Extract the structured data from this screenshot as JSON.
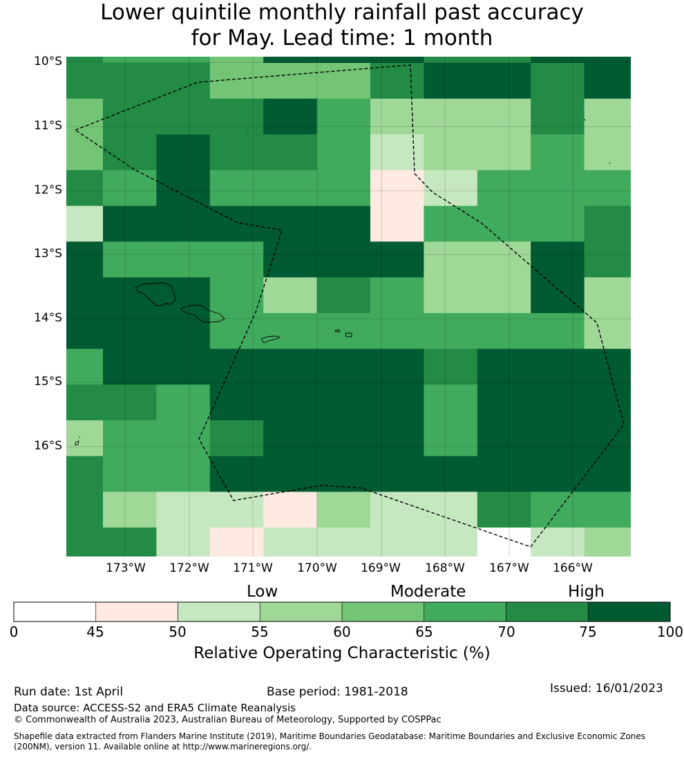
{
  "title": {
    "line1": "Lower quintile monthly rainfall past accuracy",
    "line2": "for May. Lead time: 1 month"
  },
  "map": {
    "lat_labels": [
      "10°S",
      "11°S",
      "12°S",
      "13°S",
      "14°S",
      "15°S",
      "16°S"
    ],
    "lon_labels": [
      "173°W",
      "172°W",
      "171°W",
      "170°W",
      "169°W",
      "168°W",
      "167°W",
      "166°W"
    ],
    "grid_levels": [
      [
        6,
        5,
        5,
        4,
        7,
        7,
        7,
        6,
        6,
        7,
        7,
        7,
        7,
        7
      ],
      [
        6,
        6,
        6,
        4,
        4,
        4,
        6,
        7,
        7,
        6,
        7,
        7,
        7,
        7
      ],
      [
        4,
        6,
        6,
        6,
        7,
        5,
        3,
        3,
        3,
        6,
        3,
        3,
        7,
        5
      ],
      [
        4,
        6,
        7,
        6,
        6,
        5,
        2,
        3,
        3,
        5,
        3,
        3,
        3,
        5
      ],
      [
        6,
        5,
        7,
        5,
        5,
        5,
        1,
        2,
        5,
        5,
        5,
        5,
        5,
        5
      ],
      [
        2,
        7,
        7,
        7,
        7,
        7,
        1,
        5,
        5,
        5,
        6,
        5,
        5,
        3
      ],
      [
        7,
        5,
        5,
        5,
        7,
        7,
        7,
        3,
        3,
        7,
        6,
        6,
        6,
        5
      ],
      [
        7,
        7,
        7,
        5,
        3,
        6,
        5,
        3,
        3,
        7,
        3,
        3,
        3,
        5
      ],
      [
        7,
        7,
        7,
        5,
        5,
        5,
        5,
        5,
        5,
        5,
        3,
        3,
        7,
        5
      ],
      [
        5,
        7,
        7,
        7,
        7,
        7,
        7,
        6,
        7,
        7,
        7,
        6,
        6,
        6
      ],
      [
        6,
        6,
        5,
        7,
        7,
        7,
        7,
        5,
        7,
        7,
        7,
        7,
        7,
        7
      ],
      [
        3,
        5,
        5,
        6,
        7,
        7,
        7,
        5,
        7,
        7,
        7,
        5,
        7,
        7
      ],
      [
        6,
        5,
        5,
        7,
        7,
        7,
        7,
        7,
        7,
        7,
        7,
        6,
        6,
        5
      ],
      [
        6,
        3,
        2,
        2,
        1,
        3,
        2,
        2,
        6,
        5,
        5,
        5,
        1,
        1
      ],
      [
        6,
        6,
        2,
        1,
        2,
        2,
        2,
        2,
        0,
        2,
        3,
        2,
        1,
        1
      ]
    ]
  },
  "colorbar": {
    "levels": [
      {
        "from": 0,
        "to": 45,
        "color": "#ffffff"
      },
      {
        "from": 45,
        "to": 50,
        "color": "#feeae0"
      },
      {
        "from": 50,
        "to": 55,
        "color": "#c6e8c0"
      },
      {
        "from": 55,
        "to": 60,
        "color": "#a0d898"
      },
      {
        "from": 60,
        "to": 65,
        "color": "#74c476"
      },
      {
        "from": 65,
        "to": 70,
        "color": "#41ab5d"
      },
      {
        "from": 70,
        "to": 75,
        "color": "#238b45"
      },
      {
        "from": 75,
        "to": 100,
        "color": "#005a32"
      }
    ],
    "ticks": [
      "0",
      "45",
      "50",
      "55",
      "60",
      "65",
      "70",
      "75",
      "100"
    ],
    "categories": {
      "low": "Low",
      "moderate": "Moderate",
      "high": "High"
    },
    "label": "Relative Operating Characteristic (%)"
  },
  "footer": {
    "run_date": "Run date: 1st April",
    "base_period": "Base period: 1981-2018",
    "issued": "Issued: 16/01/2023",
    "data_source": "Data source: ACCESS-S2 and ERA5 Climate Reanalysis",
    "copyright": "© Commonwealth of Australia 2023, Australian Bureau of Meteorology, Supported by COSPPac",
    "shapefile_line1": "Shapefile data extracted from Flanders Marine Institute (2019), Maritime Boundaries Geodatabase: Maritime Boundaries and Exclusive Economic Zones",
    "shapefile_line2": "(200NM), version 11. Available online at http://www.marineregions.org/."
  }
}
